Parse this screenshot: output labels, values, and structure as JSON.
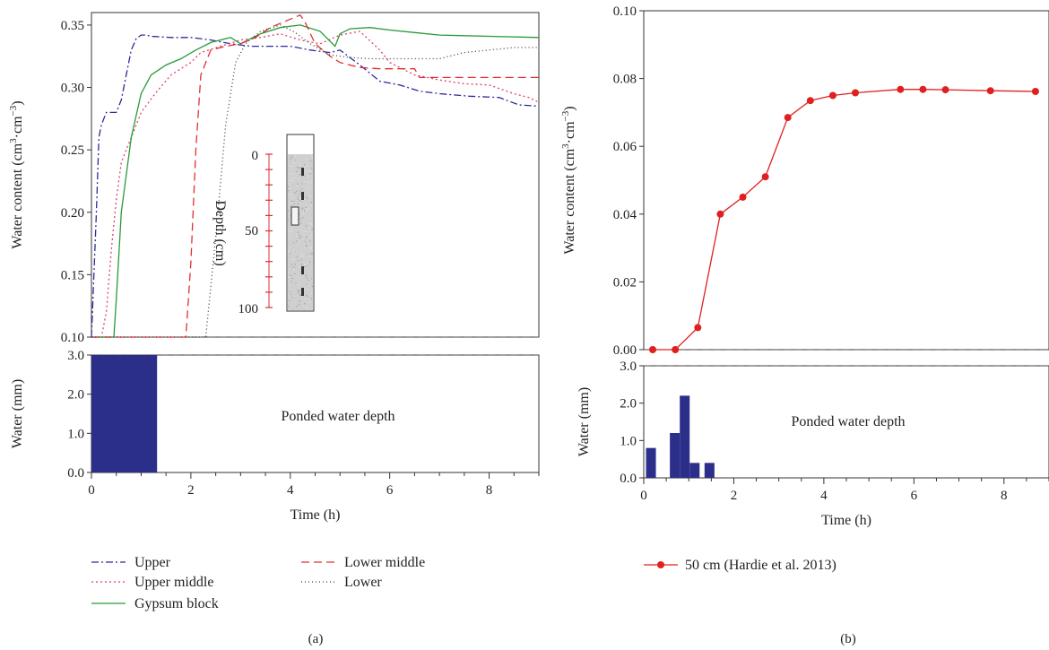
{
  "figure_labels": {
    "a": "(a)",
    "b": "(b)"
  },
  "chart_data": [
    {
      "panel": "(a)",
      "type": "line",
      "ylabel": "Water content (cm³·cm⁻³)",
      "ylim": [
        0.1,
        0.36
      ],
      "yticks": [
        "0.10",
        "0.15",
        "0.20",
        "0.25",
        "0.30",
        "0.35"
      ],
      "xlim": [
        0,
        9
      ],
      "baseline_dashed_y": 0.1,
      "series": [
        {
          "name": "Upper",
          "color": "#2b2b9a",
          "dash": "8,3,2,3",
          "x": [
            0,
            0.1,
            0.15,
            0.2,
            0.3,
            0.5,
            0.6,
            0.7,
            0.8,
            0.9,
            1.0,
            1.1,
            1.2,
            1.6,
            2.0,
            2.4,
            2.8,
            3.2,
            3.6,
            4.0,
            4.4,
            4.8,
            5.0,
            5.4,
            5.8,
            6.2,
            6.6,
            7.0,
            7.6,
            8.2,
            8.6,
            9.0
          ],
          "y": [
            0.1,
            0.2,
            0.26,
            0.27,
            0.28,
            0.28,
            0.29,
            0.31,
            0.33,
            0.339,
            0.342,
            0.342,
            0.341,
            0.34,
            0.34,
            0.338,
            0.335,
            0.333,
            0.333,
            0.333,
            0.33,
            0.328,
            0.33,
            0.318,
            0.305,
            0.302,
            0.297,
            0.295,
            0.293,
            0.292,
            0.286,
            0.285
          ]
        },
        {
          "name": "Upper middle",
          "color": "#d9426a",
          "dash": "2,3",
          "x": [
            0,
            0.2,
            0.3,
            0.4,
            0.5,
            0.6,
            0.8,
            1.0,
            1.3,
            1.6,
            2.0,
            2.2,
            2.6,
            3.0,
            3.4,
            3.8,
            4.2,
            4.6,
            5.0,
            5.4,
            5.8,
            6.0,
            6.5,
            7.0,
            7.5,
            8.0,
            8.5,
            8.8,
            9.0
          ],
          "y": [
            0.1,
            0.1,
            0.12,
            0.17,
            0.21,
            0.24,
            0.26,
            0.28,
            0.296,
            0.31,
            0.32,
            0.328,
            0.333,
            0.338,
            0.34,
            0.343,
            0.338,
            0.335,
            0.342,
            0.345,
            0.33,
            0.32,
            0.31,
            0.306,
            0.303,
            0.302,
            0.295,
            0.292,
            0.288
          ]
        },
        {
          "name": "Gypsum block",
          "color": "#279a38",
          "dash": "",
          "x": [
            0,
            0.45,
            0.5,
            0.6,
            0.8,
            1.0,
            1.2,
            1.5,
            1.8,
            2.1,
            2.4,
            2.8,
            3.0,
            3.4,
            3.8,
            4.2,
            4.6,
            4.9,
            5.0,
            5.2,
            5.6,
            6.0,
            6.5,
            7.0,
            8.0,
            9.0
          ],
          "y": [
            0.1,
            0.1,
            0.13,
            0.2,
            0.26,
            0.295,
            0.31,
            0.318,
            0.323,
            0.33,
            0.336,
            0.34,
            0.335,
            0.343,
            0.348,
            0.35,
            0.345,
            0.333,
            0.343,
            0.347,
            0.348,
            0.346,
            0.344,
            0.342,
            0.341,
            0.34
          ]
        },
        {
          "name": "Lower middle",
          "color": "#e03030",
          "dash": "9,5",
          "x": [
            0,
            1.9,
            2.0,
            2.1,
            2.2,
            2.4,
            2.7,
            3.0,
            3.3,
            3.6,
            3.9,
            4.2,
            4.3,
            4.5,
            4.8,
            5.0,
            5.4,
            5.8,
            6.2,
            6.5,
            6.6,
            7.0,
            8.0,
            9.0
          ],
          "y": [
            0.1,
            0.1,
            0.16,
            0.25,
            0.31,
            0.33,
            0.333,
            0.335,
            0.34,
            0.348,
            0.353,
            0.358,
            0.352,
            0.335,
            0.325,
            0.32,
            0.316,
            0.315,
            0.315,
            0.315,
            0.308,
            0.308,
            0.308,
            0.308
          ]
        },
        {
          "name": "Lower",
          "color": "#3a3a3a",
          "dash": "1,3",
          "x": [
            0,
            2.3,
            2.5,
            2.7,
            2.9,
            3.1,
            3.4,
            3.8,
            4.1,
            4.4,
            4.8,
            5.2,
            5.6,
            6.0,
            6.5,
            7.0,
            7.5,
            8.0,
            8.5,
            9.0
          ],
          "y": [
            0.1,
            0.1,
            0.18,
            0.27,
            0.32,
            0.335,
            0.345,
            0.35,
            0.344,
            0.335,
            0.326,
            0.324,
            0.323,
            0.323,
            0.323,
            0.323,
            0.328,
            0.33,
            0.332,
            0.332
          ]
        }
      ],
      "inset": {
        "ylabel": "Depth (cm)",
        "ylim": [
          0,
          100
        ],
        "ticks": [
          "0",
          "50",
          "100"
        ]
      }
    },
    {
      "panel": "(a)",
      "type": "bar",
      "ylabel": "Water (mm)",
      "xlabel": "Time (h)",
      "ylim": [
        0,
        3.0
      ],
      "yticks": [
        "0.0",
        "1.0",
        "2.0",
        "3.0"
      ],
      "xlim": [
        0,
        9
      ],
      "xticks": [
        "0",
        "2",
        "4",
        "6",
        "8"
      ],
      "top_dashed_y": 3.0,
      "annotation": "Ponded water depth",
      "bars": [
        {
          "x0": 0,
          "x1": 1.32,
          "value": 3.0
        }
      ]
    },
    {
      "panel": "(b)",
      "type": "line",
      "ylabel": "Water content (cm³·cm⁻³)",
      "ylim": [
        0.0,
        0.1
      ],
      "yticks": [
        "0.00",
        "0.02",
        "0.04",
        "0.06",
        "0.08",
        "0.10"
      ],
      "xlim": [
        0,
        9
      ],
      "baseline_dashed_y": 0.0,
      "series": [
        {
          "name": "50 cm (Hardie et al. 2013)",
          "color": "#e02020",
          "x": [
            0.2,
            0.7,
            1.2,
            1.7,
            2.2,
            2.7,
            3.2,
            3.7,
            4.2,
            4.7,
            5.7,
            6.2,
            6.7,
            7.7,
            8.7
          ],
          "y": [
            0.0,
            0.0,
            0.0065,
            0.04,
            0.045,
            0.051,
            0.0685,
            0.0735,
            0.075,
            0.0758,
            0.0768,
            0.0768,
            0.0767,
            0.0764,
            0.0762
          ]
        }
      ]
    },
    {
      "panel": "(b)",
      "type": "bar",
      "ylabel": "Water (mm)",
      "xlabel": "Time (h)",
      "ylim": [
        0,
        3.0
      ],
      "yticks": [
        "0.0",
        "1.0",
        "2.0",
        "3.0"
      ],
      "xlim": [
        0,
        9
      ],
      "xticks": [
        "0",
        "2",
        "4",
        "6",
        "8"
      ],
      "top_dashed_y": 3.0,
      "annotation": "Ponded water depth",
      "bars": [
        {
          "x0": 0.05,
          "x1": 0.27,
          "value": 0.8
        },
        {
          "x0": 0.58,
          "x1": 0.8,
          "value": 1.2
        },
        {
          "x0": 0.8,
          "x1": 1.02,
          "value": 2.2
        },
        {
          "x0": 1.02,
          "x1": 1.24,
          "value": 0.4
        },
        {
          "x0": 1.35,
          "x1": 1.57,
          "value": 0.4
        }
      ]
    }
  ]
}
